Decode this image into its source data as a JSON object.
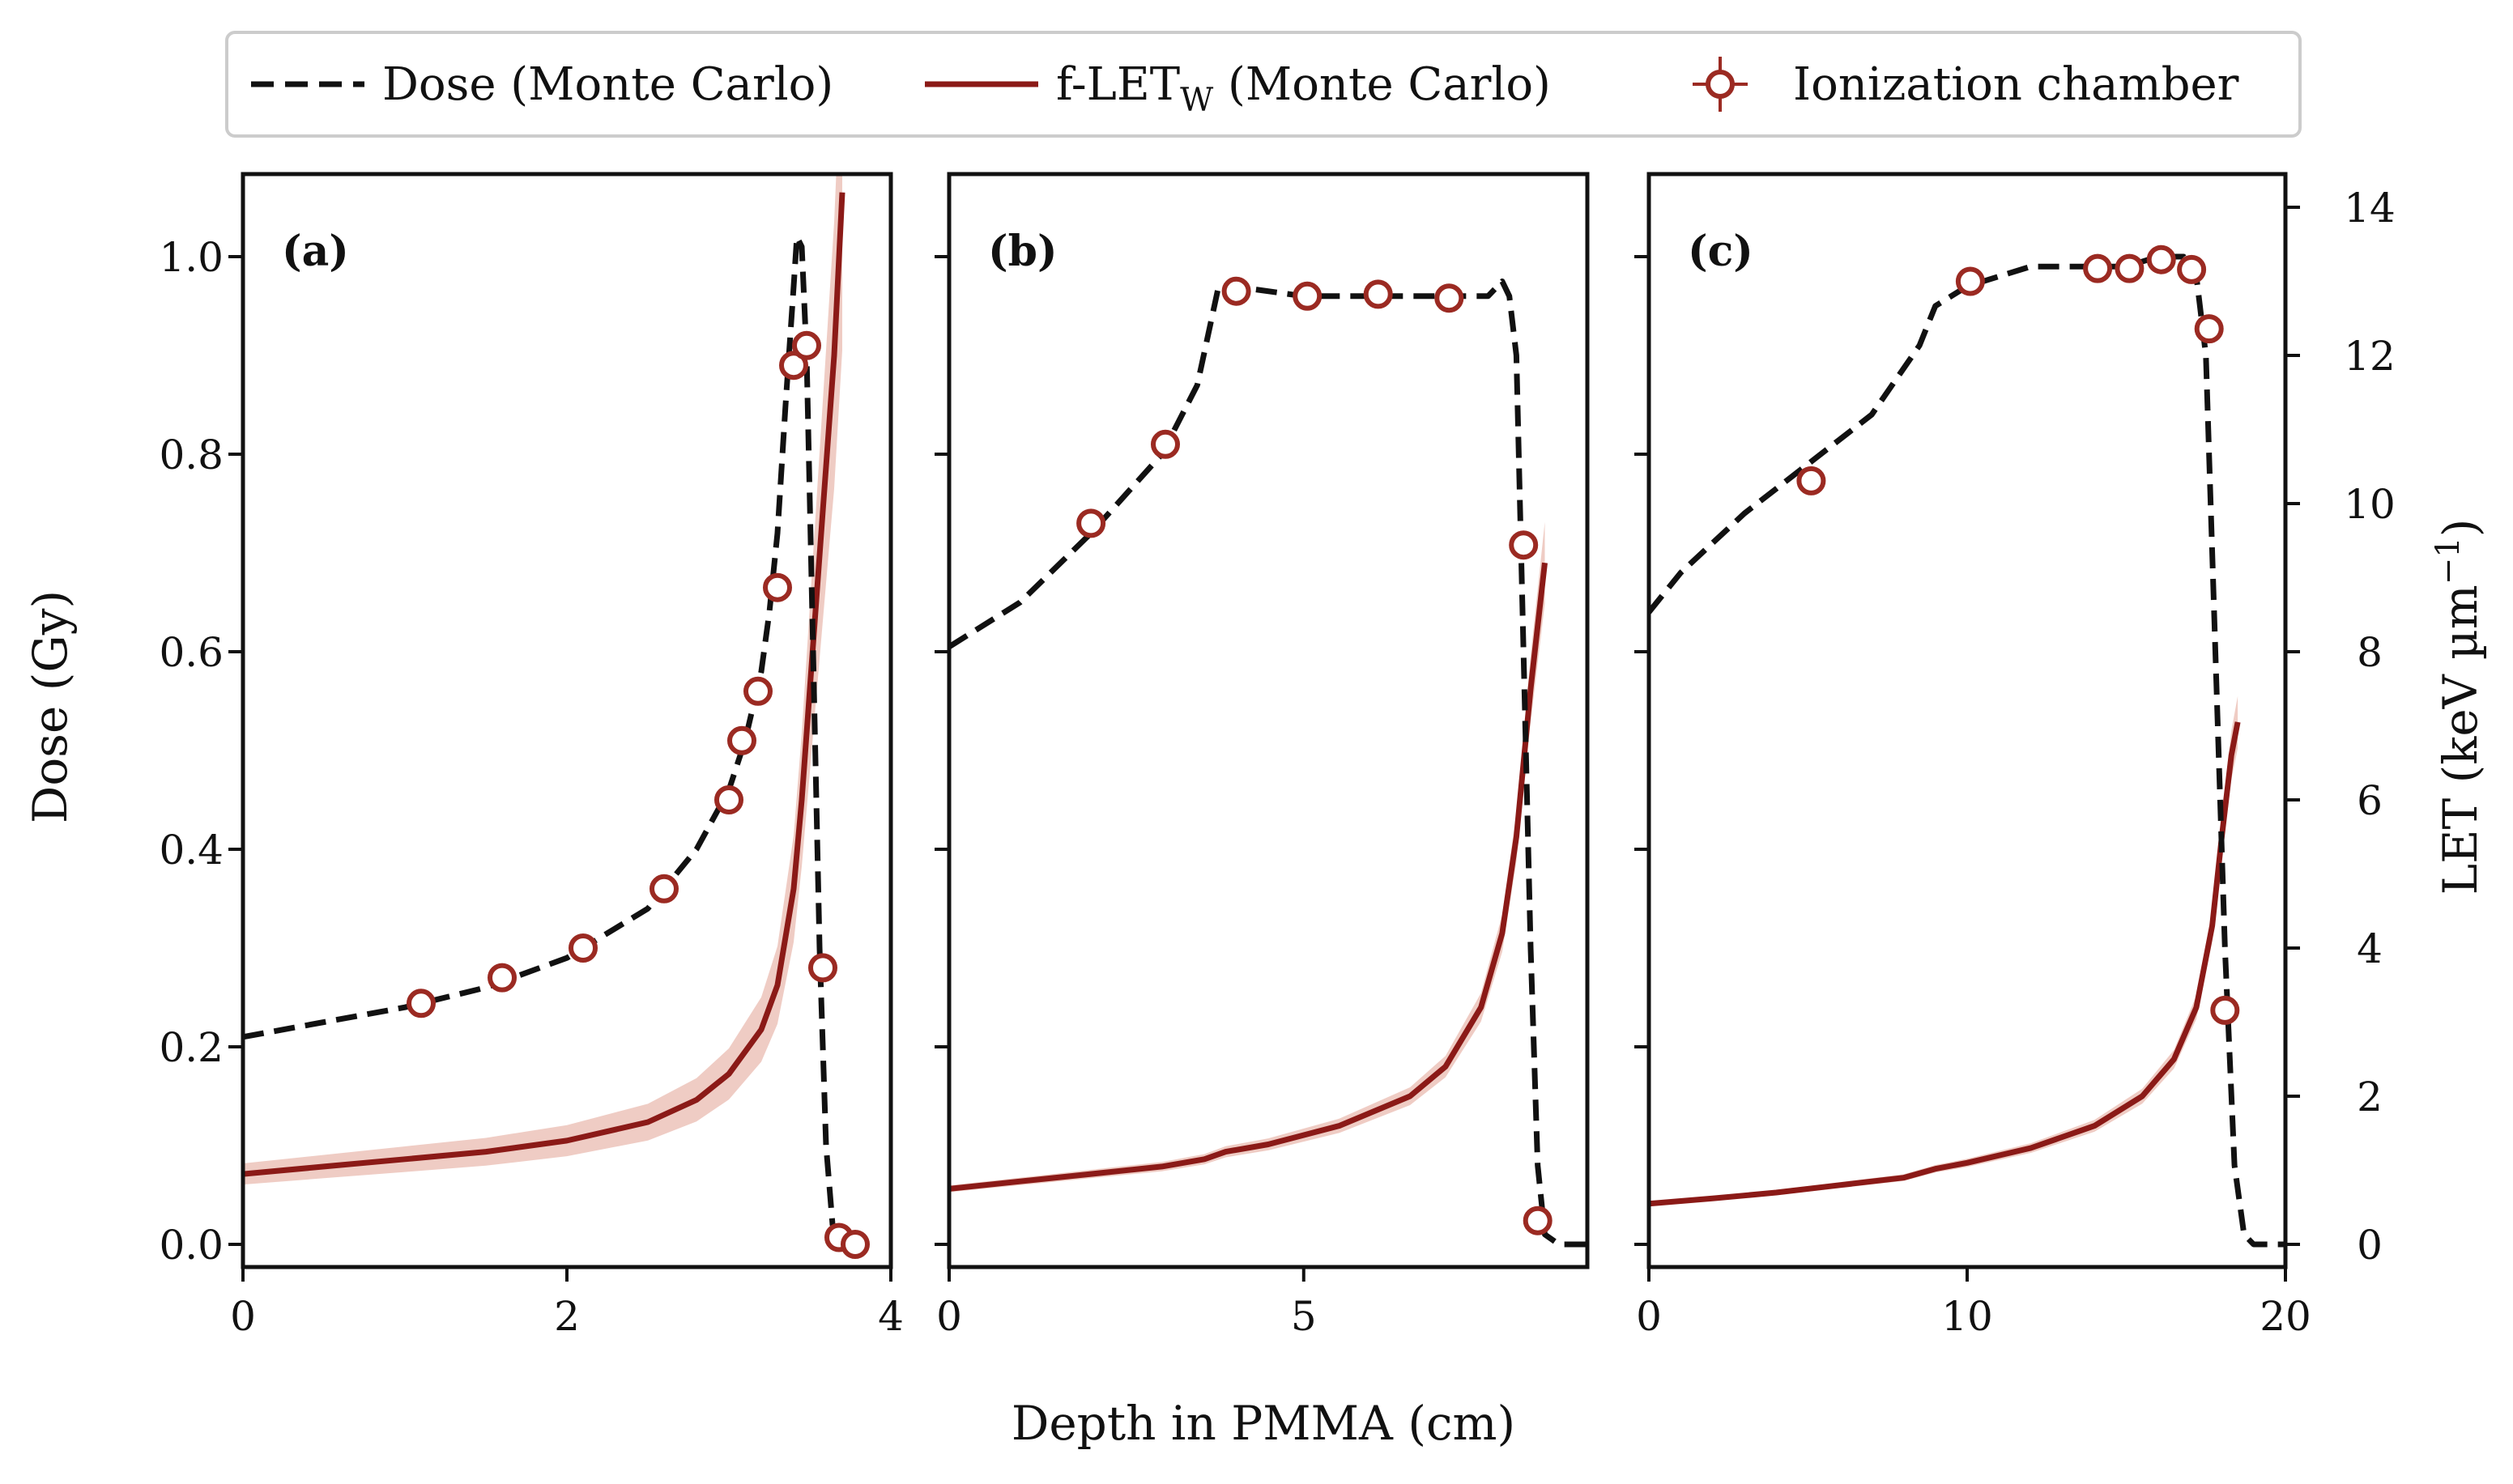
{
  "chart_data": {
    "type": "line",
    "xlabel": "Depth in PMMA (cm)",
    "ylabel_left": "Dose (Gy)",
    "ylabel_right_main": "LET (keV µm",
    "ylabel_right_sup": "−1",
    "ylabel_right_close": ")",
    "ylim_dose": [
      0,
      1.08
    ],
    "ylim_let": [
      0,
      14.4
    ],
    "dose_ticks": [
      "0.0",
      "0.2",
      "0.4",
      "0.6",
      "0.8",
      "1.0"
    ],
    "dose_tick_values": [
      0,
      0.2,
      0.4,
      0.6,
      0.8,
      1.0
    ],
    "let_ticks": [
      "0",
      "2",
      "4",
      "6",
      "8",
      "10",
      "12",
      "14"
    ],
    "let_tick_values": [
      0,
      2,
      4,
      6,
      8,
      10,
      12,
      14
    ],
    "legend": {
      "placement": "top-center",
      "dose_label": "Dose (Monte Carlo)",
      "let_label_main": "f-LET",
      "let_label_sub": "W",
      "let_label_rest": " (Monte Carlo)",
      "chamber_label": "Ionization chamber"
    },
    "colors": {
      "dose": "#111111",
      "let": "#8b1a17",
      "let_band": "#e2a394",
      "chamber": "#9b2a22"
    },
    "panels": [
      {
        "label": "(a)",
        "xlim": [
          0,
          4
        ],
        "xticks": [
          "0",
          "2",
          "4"
        ],
        "xtick_values": [
          0,
          2,
          4
        ],
        "dose_mc": [
          [
            0,
            0.21
          ],
          [
            0.5,
            0.225
          ],
          [
            1.0,
            0.24
          ],
          [
            1.5,
            0.26
          ],
          [
            2.0,
            0.29
          ],
          [
            2.5,
            0.34
          ],
          [
            2.8,
            0.4
          ],
          [
            3.0,
            0.46
          ],
          [
            3.1,
            0.51
          ],
          [
            3.2,
            0.58
          ],
          [
            3.25,
            0.64
          ],
          [
            3.3,
            0.72
          ],
          [
            3.35,
            0.85
          ],
          [
            3.4,
            0.97
          ],
          [
            3.42,
            1.02
          ],
          [
            3.45,
            1.01
          ],
          [
            3.48,
            0.9
          ],
          [
            3.52,
            0.6
          ],
          [
            3.56,
            0.3
          ],
          [
            3.6,
            0.1
          ],
          [
            3.64,
            0.02
          ],
          [
            3.7,
            0.005
          ],
          [
            3.8,
            0.0
          ]
        ],
        "let_mc": [
          [
            0,
            0.95
          ],
          [
            0.5,
            1.05
          ],
          [
            1.0,
            1.15
          ],
          [
            1.5,
            1.25
          ],
          [
            2.0,
            1.4
          ],
          [
            2.5,
            1.65
          ],
          [
            2.8,
            1.95
          ],
          [
            3.0,
            2.3
          ],
          [
            3.2,
            2.9
          ],
          [
            3.3,
            3.5
          ],
          [
            3.4,
            4.8
          ],
          [
            3.45,
            6.0
          ],
          [
            3.5,
            7.5
          ],
          [
            3.55,
            9.0
          ],
          [
            3.6,
            10.5
          ],
          [
            3.65,
            12.0
          ],
          [
            3.7,
            14.2
          ]
        ],
        "let_band_halfwidth": 0.15,
        "chamber": [
          [
            1.1,
            0.244
          ],
          [
            1.6,
            0.27
          ],
          [
            2.1,
            0.3
          ],
          [
            2.6,
            0.36
          ],
          [
            3.0,
            0.45
          ],
          [
            3.08,
            0.51
          ],
          [
            3.18,
            0.56
          ],
          [
            3.3,
            0.665
          ],
          [
            3.4,
            0.89
          ],
          [
            3.48,
            0.91
          ],
          [
            3.58,
            0.28
          ],
          [
            3.68,
            0.007
          ],
          [
            3.78,
            0.0
          ]
        ]
      },
      {
        "label": "(b)",
        "xlim": [
          0,
          9
        ],
        "xticks": [
          "0",
          "5"
        ],
        "xtick_values": [
          0,
          5
        ],
        "dose_mc": [
          [
            0,
            0.605
          ],
          [
            1.0,
            0.65
          ],
          [
            2.0,
            0.72
          ],
          [
            3.0,
            0.8
          ],
          [
            3.5,
            0.87
          ],
          [
            3.8,
            0.97
          ],
          [
            4.0,
            0.97
          ],
          [
            5.0,
            0.96
          ],
          [
            6.0,
            0.96
          ],
          [
            7.0,
            0.96
          ],
          [
            7.6,
            0.96
          ],
          [
            7.8,
            0.975
          ],
          [
            7.9,
            0.96
          ],
          [
            8.0,
            0.9
          ],
          [
            8.1,
            0.6
          ],
          [
            8.2,
            0.3
          ],
          [
            8.3,
            0.08
          ],
          [
            8.4,
            0.01
          ],
          [
            8.6,
            0.0
          ],
          [
            9.0,
            0.0
          ]
        ],
        "let_mc": [
          [
            0,
            0.75
          ],
          [
            1.0,
            0.85
          ],
          [
            2.0,
            0.95
          ],
          [
            3.0,
            1.05
          ],
          [
            3.6,
            1.15
          ],
          [
            3.9,
            1.25
          ],
          [
            4.5,
            1.35
          ],
          [
            5.5,
            1.6
          ],
          [
            6.5,
            2.0
          ],
          [
            7.0,
            2.4
          ],
          [
            7.5,
            3.2
          ],
          [
            7.8,
            4.2
          ],
          [
            8.0,
            5.5
          ],
          [
            8.2,
            7.5
          ],
          [
            8.4,
            9.2
          ]
        ],
        "let_band_halfwidth": 0.06,
        "chamber": [
          [
            2.0,
            0.73
          ],
          [
            3.05,
            0.81
          ],
          [
            4.05,
            0.965
          ],
          [
            5.05,
            0.96
          ],
          [
            6.05,
            0.962
          ],
          [
            7.05,
            0.958
          ],
          [
            8.1,
            0.708
          ],
          [
            8.3,
            0.024
          ]
        ]
      },
      {
        "label": "(c)",
        "xlim": [
          0,
          20
        ],
        "xticks": [
          "0",
          "10",
          "20"
        ],
        "xtick_values": [
          0,
          10,
          20
        ],
        "dose_mc": [
          [
            0,
            0.64
          ],
          [
            1.0,
            0.68
          ],
          [
            3.0,
            0.74
          ],
          [
            5.0,
            0.79
          ],
          [
            7.0,
            0.84
          ],
          [
            8.5,
            0.91
          ],
          [
            9.0,
            0.95
          ],
          [
            10.0,
            0.97
          ],
          [
            11.0,
            0.98
          ],
          [
            12.0,
            0.99
          ],
          [
            13.0,
            0.99
          ],
          [
            14.0,
            0.99
          ],
          [
            15.0,
            0.99
          ],
          [
            16.0,
            1.0
          ],
          [
            16.8,
            1.0
          ],
          [
            17.2,
            0.98
          ],
          [
            17.5,
            0.9
          ],
          [
            17.8,
            0.6
          ],
          [
            18.1,
            0.3
          ],
          [
            18.4,
            0.08
          ],
          [
            18.7,
            0.01
          ],
          [
            19.0,
            0.0
          ],
          [
            20.0,
            0.0
          ]
        ],
        "let_mc": [
          [
            0,
            0.55
          ],
          [
            2.0,
            0.62
          ],
          [
            4.0,
            0.7
          ],
          [
            6.0,
            0.8
          ],
          [
            8.0,
            0.9
          ],
          [
            9.0,
            1.02
          ],
          [
            10.0,
            1.1
          ],
          [
            12.0,
            1.3
          ],
          [
            14.0,
            1.6
          ],
          [
            15.5,
            2.0
          ],
          [
            16.5,
            2.5
          ],
          [
            17.2,
            3.2
          ],
          [
            17.7,
            4.3
          ],
          [
            18.0,
            5.5
          ],
          [
            18.3,
            6.6
          ],
          [
            18.5,
            7.05
          ]
        ],
        "let_band_halfwidth": 0.05,
        "chamber": [
          [
            5.1,
            0.773
          ],
          [
            10.1,
            0.975
          ],
          [
            14.1,
            0.988
          ],
          [
            15.1,
            0.988
          ],
          [
            16.1,
            0.997
          ],
          [
            17.05,
            0.987
          ],
          [
            17.6,
            0.927
          ],
          [
            18.1,
            0.237
          ]
        ]
      }
    ]
  }
}
